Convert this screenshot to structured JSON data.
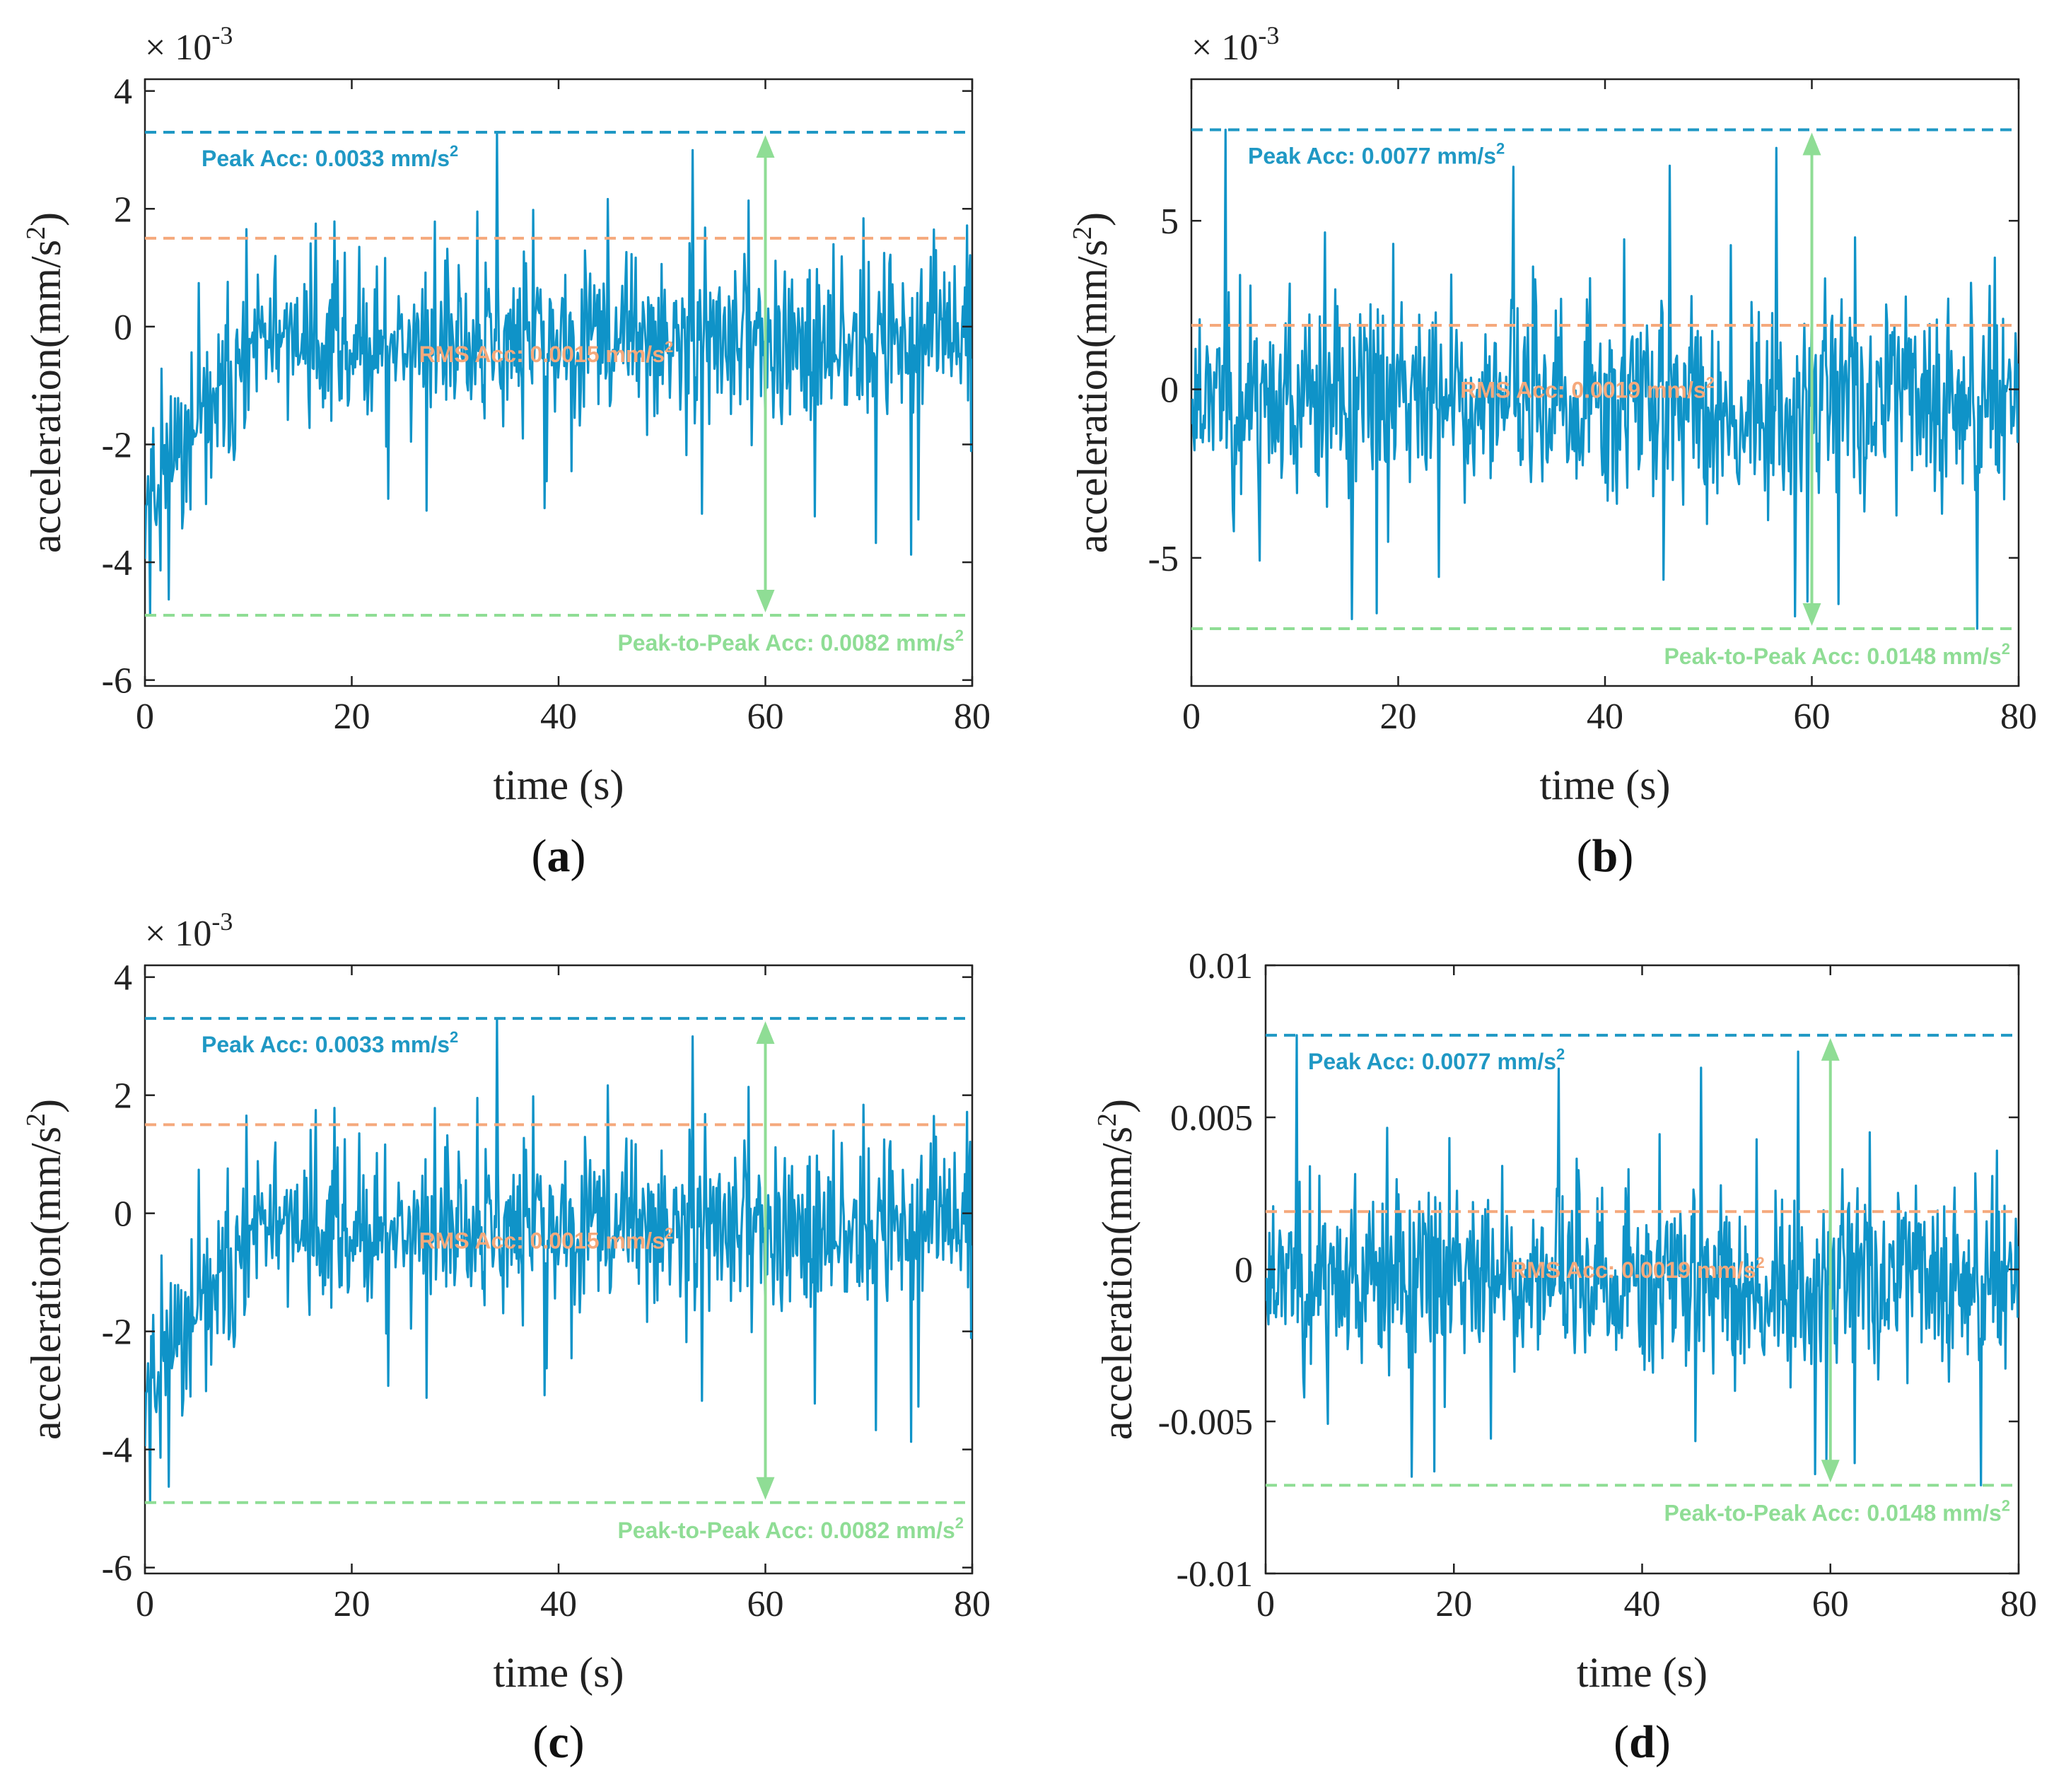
{
  "figure": {
    "line_color": "#0f93c8",
    "peak_color": "#1f98c4",
    "rms_color": "#f5a97c",
    "ptp_color": "#8fdd95",
    "axis_color": "#222222"
  },
  "chart_data": [
    {
      "id": "a",
      "type": "line",
      "panel_label": "a",
      "xlabel": "time (s)",
      "ylabel_main": "acceleration(mm/s",
      "ylabel_sup": "2",
      "ylabel_end": ")",
      "exponent_prefix": "× 10",
      "exponent_power": "-3",
      "xlim": [
        0,
        80
      ],
      "ylim": [
        -6.1,
        4.2
      ],
      "xticks": [
        0,
        20,
        40,
        60,
        80
      ],
      "xtick_labels": [
        "0",
        "20",
        "40",
        "60",
        "80"
      ],
      "yticks": [
        -6,
        -4,
        -2,
        0,
        2,
        4
      ],
      "ytick_labels": [
        "-6",
        "-4",
        "-2",
        "0",
        "2",
        "4"
      ],
      "peak_value": 3.3,
      "rms_value": 1.5,
      "trough_value": -4.9,
      "arrow_x": 60,
      "peak_text": "Peak Acc: 0.0033 mm/s",
      "rms_text": "RMS Acc: 0.0015 mm/s",
      "ptp_text": "Peak-to-Peak Acc: 0.0082 mm/s",
      "unit_sup": "2",
      "signal": {
        "seed": 11,
        "n": 800,
        "mean_start": -2.8,
        "mean_end": -0.3,
        "knee": 12,
        "noise": 0.85,
        "spike_up": 3.3,
        "spike_up_t": 34,
        "spike_down": -4.9,
        "spike_down_t": 0.5
      }
    },
    {
      "id": "b",
      "type": "line",
      "panel_label": "b",
      "xlabel": "time (s)",
      "ylabel_main": "acceleration(mm/s",
      "ylabel_sup": "2",
      "ylabel_end": ")",
      "exponent_prefix": "× 10",
      "exponent_power": "-3",
      "xlim": [
        0,
        80
      ],
      "ylim": [
        -8.8,
        9.2
      ],
      "xticks": [
        0,
        20,
        40,
        60,
        80
      ],
      "xtick_labels": [
        "0",
        "20",
        "40",
        "60",
        "80"
      ],
      "yticks": [
        -5,
        0,
        5
      ],
      "ytick_labels": [
        "-5",
        "0",
        "5"
      ],
      "peak_value": 7.7,
      "rms_value": 1.9,
      "trough_value": -7.1,
      "arrow_x": 60,
      "peak_text": "Peak Acc: 0.0077 mm/s",
      "rms_text": "RMS Acc: 0.0019 mm/s",
      "ptp_text": "Peak-to-Peak Acc: 0.0148 mm/s",
      "unit_sup": "2",
      "signal": {
        "seed": 23,
        "n": 800,
        "mean_start": -0.3,
        "mean_end": -0.3,
        "knee": 1,
        "noise": 1.9,
        "spike_up": 7.7,
        "spike_up_t": 3.3,
        "spike_down": -7.1,
        "spike_down_t": 76
      }
    },
    {
      "id": "c",
      "type": "line",
      "panel_label": "c",
      "xlabel": "time (s)",
      "ylabel_main": "acceleration(mm/s",
      "ylabel_sup": "2",
      "ylabel_end": ")",
      "exponent_prefix": "× 10",
      "exponent_power": "-3",
      "xlim": [
        0,
        80
      ],
      "ylim": [
        -6.1,
        4.2
      ],
      "xticks": [
        0,
        20,
        40,
        60,
        80
      ],
      "xtick_labels": [
        "0",
        "20",
        "40",
        "60",
        "80"
      ],
      "yticks": [
        -6,
        -4,
        -2,
        0,
        2,
        4
      ],
      "ytick_labels": [
        "-6",
        "-4",
        "-2",
        "0",
        "2",
        "4"
      ],
      "peak_value": 3.3,
      "rms_value": 1.5,
      "trough_value": -4.9,
      "arrow_x": 60,
      "peak_text": "Peak Acc: 0.0033 mm/s",
      "rms_text": "RMS Acc: 0.0015 mm/s",
      "ptp_text": "Peak-to-Peak Acc: 0.0082 mm/s",
      "unit_sup": "2",
      "signal": {
        "seed": 11,
        "n": 800,
        "mean_start": -2.8,
        "mean_end": -0.3,
        "knee": 12,
        "noise": 0.85,
        "spike_up": 3.3,
        "spike_up_t": 34,
        "spike_down": -4.9,
        "spike_down_t": 0.5
      }
    },
    {
      "id": "d",
      "type": "line",
      "panel_label": "d",
      "xlabel": "time (s)",
      "ylabel_main": "acceleration(mm/s",
      "ylabel_sup": "2",
      "ylabel_end": ")",
      "exponent_prefix": "",
      "exponent_power": "",
      "xlim": [
        0,
        80
      ],
      "ylim": [
        -0.01,
        0.01
      ],
      "xticks": [
        0,
        20,
        40,
        60,
        80
      ],
      "xtick_labels": [
        "0",
        "20",
        "40",
        "60",
        "80"
      ],
      "yticks": [
        -0.01,
        -0.005,
        0,
        0.005,
        0.01
      ],
      "ytick_labels": [
        "-0.01",
        "-0.005",
        "0",
        "0.005",
        "0.01"
      ],
      "peak_value": 0.0077,
      "rms_value": 0.0019,
      "trough_value": -0.0071,
      "arrow_x": 60,
      "peak_text": "Peak Acc: 0.0077 mm/s",
      "rms_text": "RMS Acc: 0.0019 mm/s",
      "ptp_text": "Peak-to-Peak Acc: 0.0148 mm/s",
      "unit_sup": "2",
      "signal": {
        "seed": 23,
        "n": 800,
        "mean_start": -0.0003,
        "mean_end": -0.0003,
        "knee": 1,
        "noise": 0.0019,
        "spike_up": 0.0077,
        "spike_up_t": 3.3,
        "spike_down": -0.0071,
        "spike_down_t": 76
      }
    }
  ]
}
